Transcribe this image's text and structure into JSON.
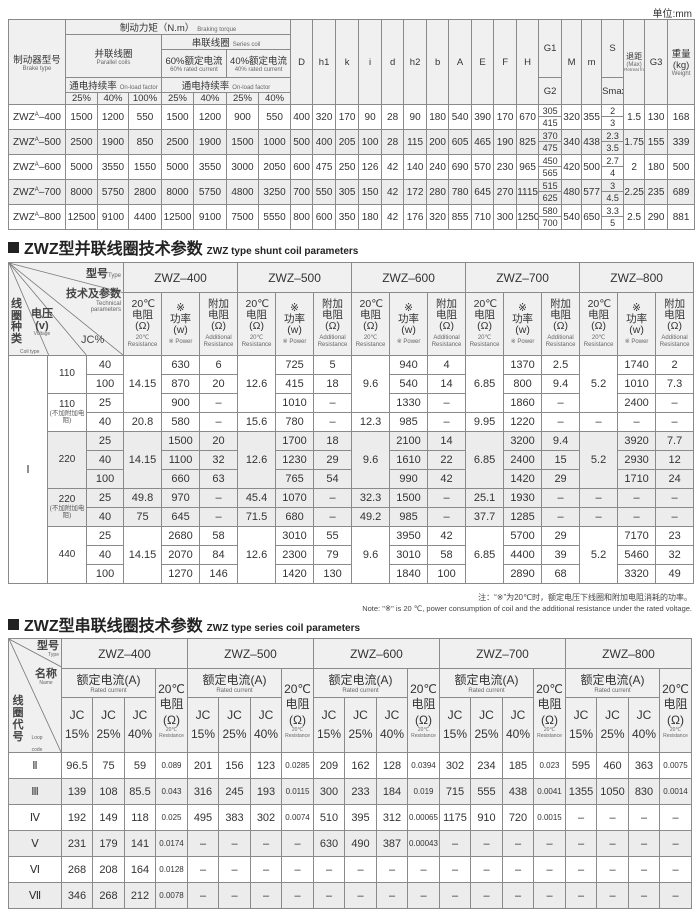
{
  "unit": "单位:mm",
  "brake_table": {
    "header": {
      "brake_type": "制动器型号",
      "brake_type_en": "Brake type",
      "torque": "制动力矩（N.m）",
      "torque_en": "Braking torque",
      "parallel": "并联线圈",
      "parallel_en": "Parallel coils",
      "series": "串联线圈",
      "series_en": "Series coil",
      "rated60": "60%额定电流",
      "rated60_en": "60% rated current",
      "rated40": "40%额定电流",
      "rated40_en": "40% rated current",
      "onload": "通电持续率",
      "onload_en": "On-load factor",
      "pct": [
        "25%",
        "40%",
        "100%",
        "25%",
        "40%",
        "25%",
        "40%"
      ],
      "dims": [
        "D",
        "h1",
        "k",
        "i",
        "d",
        "h2",
        "b",
        "A",
        "E",
        "F",
        "H"
      ],
      "g1": "G1",
      "g2": "G2",
      "M": "M",
      "m": "m",
      "s": "S",
      "smax": "Smax",
      "retreat": "退距",
      "retreat_max": "(Max)",
      "retreat_en": "Retreat from",
      "g3": "G3",
      "weight": "重量",
      "weight_unit": "(kg)",
      "weight_en": "Weight"
    },
    "rows": [
      {
        "base": "ZWZ",
        "sub": "A",
        "num": "–400",
        "torque": [
          "1500",
          "1200",
          "550",
          "1500",
          "1200",
          "900",
          "550"
        ],
        "dims": [
          "400",
          "320",
          "170",
          "90",
          "28",
          "90",
          "180",
          "540",
          "390",
          "170",
          "670"
        ],
        "g": [
          "305",
          "415"
        ],
        "M": "320",
        "m": "355",
        "s": [
          "2",
          "3"
        ],
        "retreat": "1.5",
        "g3": "130",
        "weight": "168"
      },
      {
        "base": "ZWZ",
        "sub": "A",
        "num": "–500",
        "torque": [
          "2500",
          "1900",
          "850",
          "2500",
          "1900",
          "1500",
          "1000"
        ],
        "dims": [
          "500",
          "400",
          "205",
          "100",
          "28",
          "115",
          "200",
          "605",
          "465",
          "190",
          "825"
        ],
        "g": [
          "370",
          "475"
        ],
        "M": "340",
        "m": "438",
        "s": [
          "2.3",
          "3.5"
        ],
        "retreat": "1.75",
        "g3": "155",
        "weight": "339"
      },
      {
        "base": "ZWZ",
        "sub": "A",
        "num": "–600",
        "torque": [
          "5000",
          "3550",
          "1550",
          "5000",
          "3550",
          "3000",
          "2050"
        ],
        "dims": [
          "600",
          "475",
          "250",
          "126",
          "42",
          "140",
          "240",
          "690",
          "570",
          "230",
          "965"
        ],
        "g": [
          "450",
          "565"
        ],
        "M": "420",
        "m": "500",
        "s": [
          "2.7",
          "4"
        ],
        "retreat": "2",
        "g3": "180",
        "weight": "500"
      },
      {
        "base": "ZWZ",
        "sub": "A",
        "num": "–700",
        "torque": [
          "8000",
          "5750",
          "2800",
          "8000",
          "5750",
          "4800",
          "3250"
        ],
        "dims": [
          "700",
          "550",
          "305",
          "150",
          "42",
          "172",
          "280",
          "780",
          "645",
          "270",
          "1115"
        ],
        "g": [
          "515",
          "625"
        ],
        "M": "480",
        "m": "577",
        "s": [
          "3",
          "4.5"
        ],
        "retreat": "2.25",
        "g3": "235",
        "weight": "689"
      },
      {
        "base": "ZWZ",
        "sub": "A",
        "num": "–800",
        "torque": [
          "12500",
          "9100",
          "4400",
          "12500",
          "9100",
          "7500",
          "5550"
        ],
        "dims": [
          "800",
          "600",
          "350",
          "180",
          "42",
          "176",
          "320",
          "855",
          "710",
          "300",
          "1250"
        ],
        "g": [
          "580",
          "700"
        ],
        "M": "540",
        "m": "650",
        "s": [
          "3.3",
          "5"
        ],
        "retreat": "2.5",
        "g3": "290",
        "weight": "881"
      }
    ]
  },
  "shunt": {
    "title_cn": "ZWZ型并联线圈技术参数",
    "title_en": "ZWZ type shunt coil parameters",
    "corner": {
      "type": "型号",
      "type_en": "Type",
      "tech": "技术及参数",
      "tech_en": "Technical parameters",
      "coil": "线圈种类",
      "coil_en": "Coil type",
      "voltage": "电压(v)",
      "voltage_en": "Voltage",
      "jc": "JC%"
    },
    "sub_headers": [
      {
        "cn": "20℃ 电阻 (Ω)",
        "en": "20℃ Resistance"
      },
      {
        "cn": "※ 功率 (w)",
        "en": "※ Power"
      },
      {
        "cn": "附加 电阻 (Ω)",
        "en": "Additional Resistance"
      }
    ],
    "models": [
      "ZWZ–400",
      "ZWZ–500",
      "ZWZ–600",
      "ZWZ–700",
      "ZWZ–800"
    ],
    "coil_type": "Ⅰ",
    "voltage_groups": [
      {
        "v": "110",
        "note": "",
        "jc": [
          "40",
          "100"
        ]
      },
      {
        "v": "110",
        "note": "(不加附加电阻)",
        "jc": [
          "25",
          "40"
        ]
      },
      {
        "v": "220",
        "note": "",
        "jc": [
          "25",
          "40",
          "100"
        ]
      },
      {
        "v": "220",
        "note": "(不加附加电阻)",
        "jc": [
          "25",
          "40"
        ]
      },
      {
        "v": "440",
        "note": "",
        "jc": [
          "25",
          "40",
          "100"
        ]
      }
    ],
    "columns": [
      {
        "resistance": [
          {
            "value": "14.15",
            "rows": 3
          },
          {
            "value": "20.8",
            "rows": 1
          },
          {
            "value": "14.15",
            "rows": 3
          },
          {
            "value": "49.8",
            "rows": 1
          },
          {
            "value": "75",
            "rows": 1
          },
          {
            "value": "14.15",
            "rows": 3
          }
        ],
        "power": [
          "630",
          "870",
          "900",
          "580",
          "1500",
          "1100",
          "660",
          "970",
          "645",
          "2680",
          "2070",
          "1270"
        ],
        "additional": [
          "6",
          "20",
          "–",
          "–",
          "20",
          "32",
          "63",
          "–",
          "–",
          "58",
          "84",
          "146"
        ]
      },
      {
        "resistance": [
          {
            "value": "12.6",
            "rows": 3
          },
          {
            "value": "15.6",
            "rows": 1
          },
          {
            "value": "12.6",
            "rows": 3
          },
          {
            "value": "45.4",
            "rows": 1
          },
          {
            "value": "71.5",
            "rows": 1
          },
          {
            "value": "12.6",
            "rows": 3
          }
        ],
        "power": [
          "725",
          "415",
          "1010",
          "780",
          "1700",
          "1230",
          "765",
          "1070",
          "680",
          "3010",
          "2300",
          "1420"
        ],
        "additional": [
          "5",
          "18",
          "–",
          "–",
          "18",
          "29",
          "54",
          "–",
          "–",
          "55",
          "79",
          "130"
        ]
      },
      {
        "resistance": [
          {
            "value": "9.6",
            "rows": 3
          },
          {
            "value": "12.3",
            "rows": 1
          },
          {
            "value": "9.6",
            "rows": 3
          },
          {
            "value": "32.3",
            "rows": 1
          },
          {
            "value": "49.2",
            "rows": 1
          },
          {
            "value": "9.6",
            "rows": 3
          }
        ],
        "power": [
          "940",
          "540",
          "1330",
          "985",
          "2100",
          "1610",
          "990",
          "1500",
          "985",
          "3950",
          "3010",
          "1840"
        ],
        "additional": [
          "4",
          "14",
          "–",
          "–",
          "14",
          "22",
          "42",
          "–",
          "–",
          "42",
          "58",
          "100"
        ]
      },
      {
        "resistance": [
          {
            "value": "6.85",
            "rows": 3
          },
          {
            "value": "9.95",
            "rows": 1
          },
          {
            "value": "6.85",
            "rows": 3
          },
          {
            "value": "25.1",
            "rows": 1
          },
          {
            "value": "37.7",
            "rows": 1
          },
          {
            "value": "6.85",
            "rows": 3
          }
        ],
        "power": [
          "1370",
          "800",
          "1860",
          "1220",
          "3200",
          "2400",
          "1420",
          "1930",
          "1285",
          "5700",
          "4400",
          "2890"
        ],
        "additional": [
          "2.5",
          "9.4",
          "–",
          "–",
          "9.4",
          "15",
          "29",
          "–",
          "–",
          "29",
          "39",
          "68"
        ]
      },
      {
        "resistance": [
          {
            "value": "5.2",
            "rows": 3
          },
          {
            "value": "–",
            "rows": 1
          },
          {
            "value": "5.2",
            "rows": 3
          },
          {
            "value": "–",
            "rows": 1
          },
          {
            "value": "–",
            "rows": 1
          },
          {
            "value": "5.2",
            "rows": 3
          }
        ],
        "power": [
          "1740",
          "1010",
          "2400",
          "–",
          "3920",
          "2930",
          "1710",
          "–",
          "–",
          "7170",
          "5460",
          "3320"
        ],
        "additional": [
          "2",
          "7.3",
          "–",
          "–",
          "7.7",
          "12",
          "24",
          "–",
          "–",
          "23",
          "32",
          "49"
        ]
      }
    ]
  },
  "note": {
    "cn": "注：“※”为20℃时，额定电压下线圈和附加电阻消耗的功率。",
    "en": "Note: \"※\" is 20 ℃, power consumption of coil and the additional resistance under the rated voltage."
  },
  "series": {
    "title_cn": "ZWZ型串联线圈技术参数",
    "title_en": "ZWZ type series coil parameters",
    "corner": {
      "type": "型号",
      "type_en": "Type",
      "name": "名称",
      "name_en": "Name",
      "loop": "线圈代号",
      "loop_en": "Loop code"
    },
    "models": [
      "ZWZ–400",
      "ZWZ–500",
      "ZWZ–600",
      "ZWZ–700",
      "ZWZ–800"
    ],
    "rated": "额定电流(A)",
    "rated_en": "Rated current",
    "res": "20℃",
    "res2": "电阻",
    "res3": "(Ω)",
    "res_en": "20℃ Resistance",
    "jc": [
      "JC 15%",
      "JC 25%",
      "JC 40%"
    ],
    "rows": [
      {
        "code": "Ⅱ",
        "values": [
          "96.5",
          "75",
          "59",
          "0.089",
          "201",
          "156",
          "123",
          "0.0285",
          "209",
          "162",
          "128",
          "0.0394",
          "302",
          "234",
          "185",
          "0.023",
          "595",
          "460",
          "363",
          "0.0075"
        ]
      },
      {
        "code": "Ⅲ",
        "values": [
          "139",
          "108",
          "85.5",
          "0.043",
          "316",
          "245",
          "193",
          "0.0115",
          "300",
          "233",
          "184",
          "0.019",
          "715",
          "555",
          "438",
          "0.0041",
          "1355",
          "1050",
          "830",
          "0.0014"
        ]
      },
      {
        "code": "Ⅳ",
        "values": [
          "192",
          "149",
          "118",
          "0.025",
          "495",
          "383",
          "302",
          "0.0074",
          "510",
          "395",
          "312",
          "0.00065",
          "1175",
          "910",
          "720",
          "0.0015",
          "–",
          "–",
          "–",
          "–"
        ]
      },
      {
        "code": "Ⅴ",
        "values": [
          "231",
          "179",
          "141",
          "0.0174",
          "–",
          "–",
          "–",
          "–",
          "630",
          "490",
          "387",
          "0.00043",
          "–",
          "–",
          "–",
          "–",
          "–",
          "–",
          "–",
          "–"
        ]
      },
      {
        "code": "Ⅵ",
        "values": [
          "268",
          "208",
          "164",
          "0.0128",
          "–",
          "–",
          "–",
          "–",
          "–",
          "–",
          "–",
          "–",
          "–",
          "–",
          "–",
          "–",
          "–",
          "–",
          "–",
          "–"
        ]
      },
      {
        "code": "Ⅶ",
        "values": [
          "346",
          "268",
          "212",
          "0.0078",
          "–",
          "–",
          "–",
          "–",
          "–",
          "–",
          "–",
          "–",
          "–",
          "–",
          "–",
          "–",
          "–",
          "–",
          "–",
          "–"
        ]
      }
    ]
  }
}
